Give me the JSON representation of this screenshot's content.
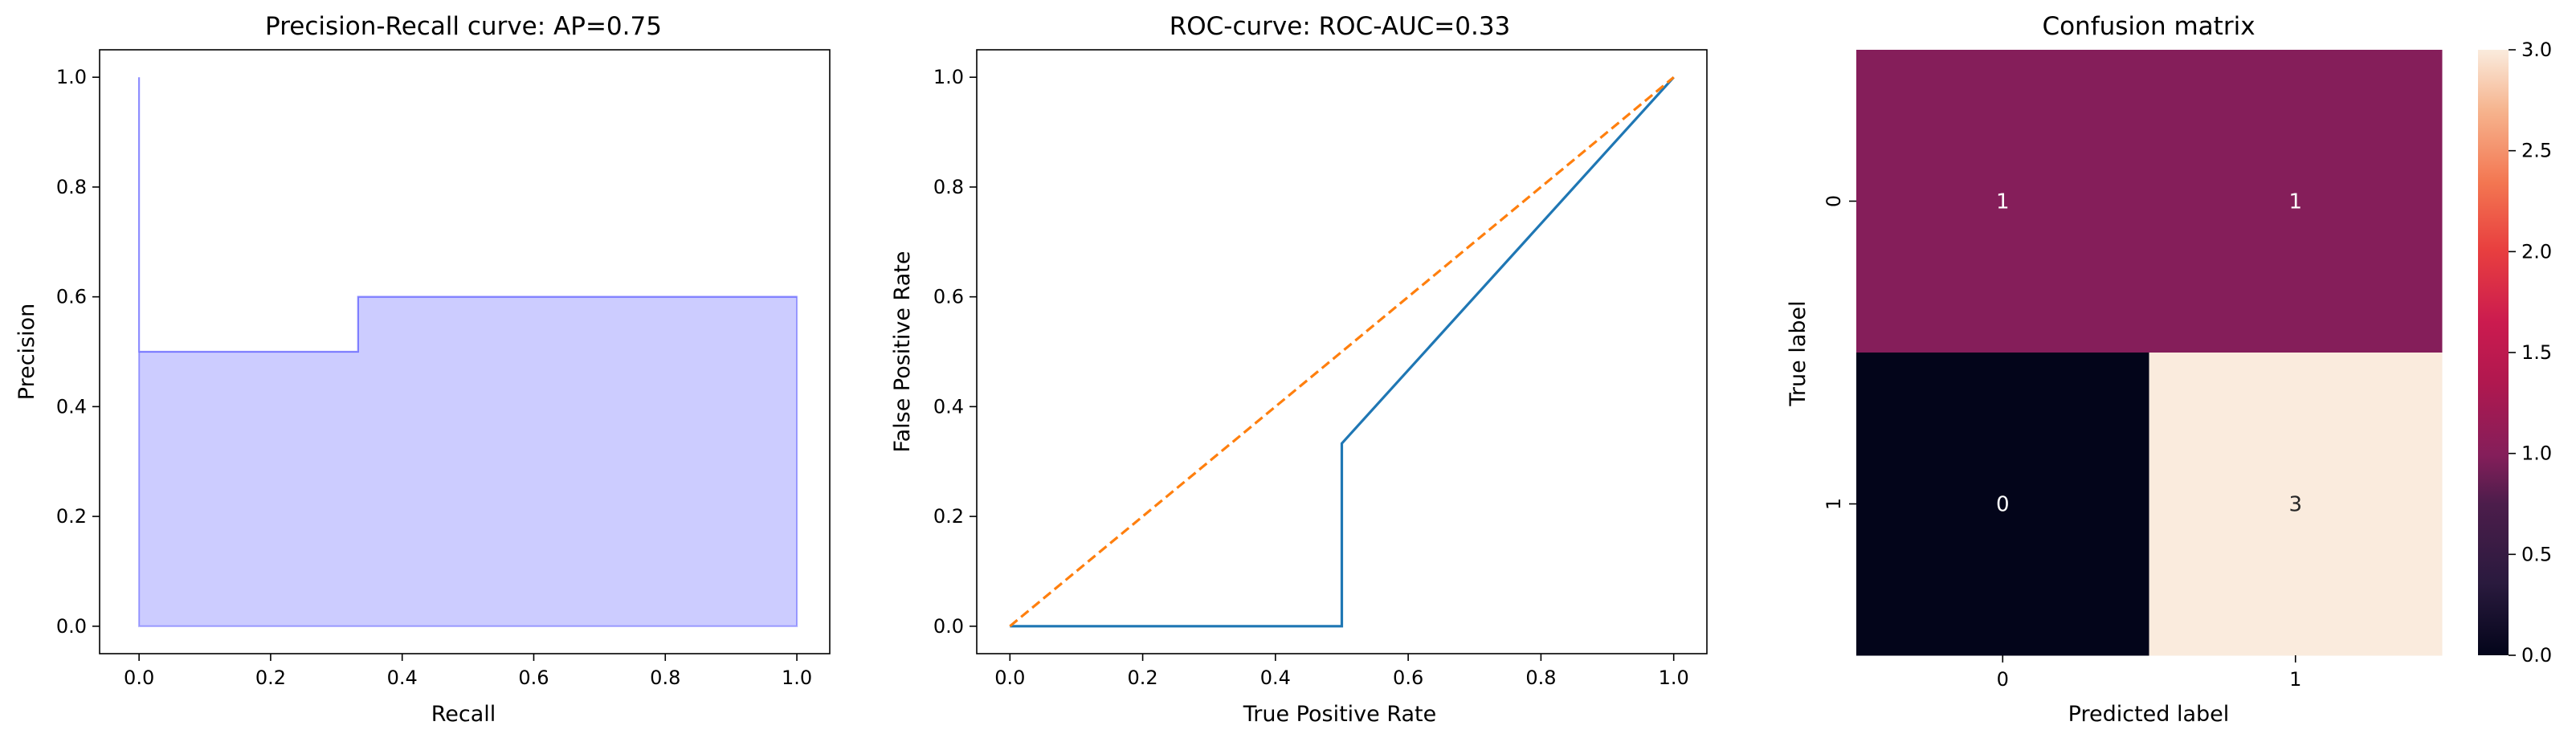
{
  "chart_data": [
    {
      "type": "area",
      "title": "Precision-Recall curve: AP=0.75",
      "xlabel": "Recall",
      "ylabel": "Precision",
      "xlim": [
        -0.06,
        1.05
      ],
      "ylim": [
        -0.05,
        1.05
      ],
      "xticks": [
        "0.0",
        "0.2",
        "0.4",
        "0.6",
        "0.8",
        "1.0"
      ],
      "yticks": [
        "0.0",
        "0.2",
        "0.4",
        "0.6",
        "0.8",
        "1.0"
      ],
      "step": "post",
      "x": [
        0.0,
        0.0,
        0.333,
        1.0
      ],
      "y": [
        1.0,
        0.5,
        0.6,
        0.6
      ],
      "color": "#0000ff",
      "alpha": 0.2,
      "grid": false
    },
    {
      "type": "line",
      "title": "ROC-curve: ROC-AUC=0.33",
      "xlabel": "True Positive Rate",
      "ylabel": "False Positive Rate",
      "xlim": [
        -0.05,
        1.05
      ],
      "ylim": [
        -0.05,
        1.05
      ],
      "xticks": [
        "0.0",
        "0.2",
        "0.4",
        "0.6",
        "0.8",
        "1.0"
      ],
      "yticks": [
        "0.0",
        "0.2",
        "0.4",
        "0.6",
        "0.8",
        "1.0"
      ],
      "series": [
        {
          "x": [
            0.0,
            0.5,
            0.5,
            1.0
          ],
          "y": [
            0.0,
            0.0,
            0.333,
            1.0
          ],
          "color": "#1f77b4",
          "style": "solid"
        },
        {
          "x": [
            0.0,
            1.0
          ],
          "y": [
            0.0,
            1.0
          ],
          "color": "#ff7f0e",
          "style": "dashed"
        }
      ],
      "grid": false
    },
    {
      "type": "heatmap",
      "title": "Confusion matrix",
      "xlabel": "Predicted label",
      "ylabel": "True label",
      "x_categories": [
        "0",
        "1"
      ],
      "y_categories": [
        "0",
        "1"
      ],
      "values": [
        [
          1,
          1
        ],
        [
          0,
          3
        ]
      ],
      "colormap": "rocket",
      "colorbar": {
        "min": 0.0,
        "max": 3.0,
        "ticks": [
          "0.0",
          "0.5",
          "1.0",
          "1.5",
          "2.0",
          "2.5",
          "3.0"
        ]
      }
    }
  ]
}
